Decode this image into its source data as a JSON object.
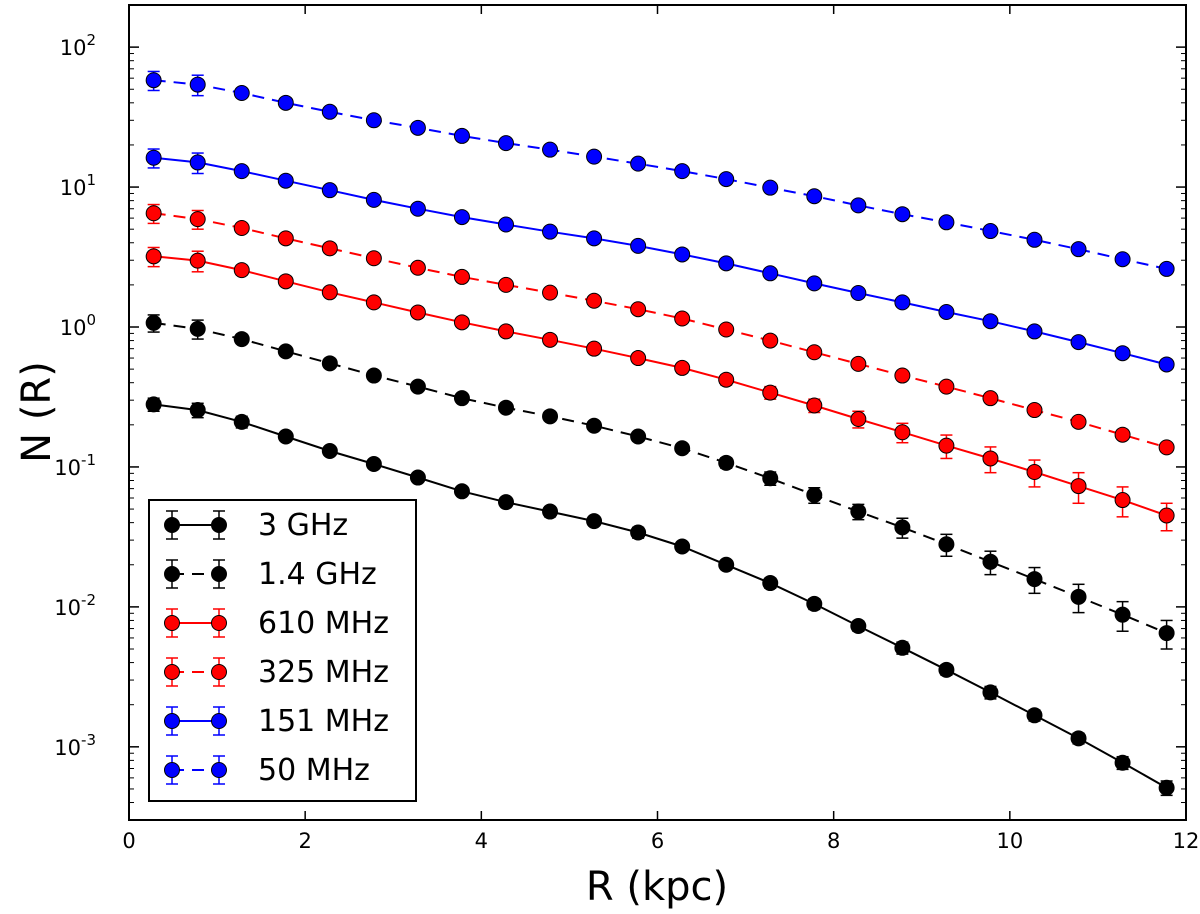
{
  "chart_data": {
    "type": "line",
    "title": "",
    "xlabel": "R (kpc)",
    "ylabel": "N (R)",
    "xscale": "linear",
    "yscale": "log",
    "xlim": [
      0,
      12
    ],
    "ylim": [
      0.0003,
      200
    ],
    "xticks": [
      0,
      2,
      4,
      6,
      8,
      10,
      12
    ],
    "xtick_labels": [
      "0",
      "2",
      "4",
      "6",
      "8",
      "10",
      "12"
    ],
    "yticks": [
      {
        "value": 0.001,
        "base": "10",
        "exp": "-3"
      },
      {
        "value": 0.01,
        "base": "10",
        "exp": "-2"
      },
      {
        "value": 0.1,
        "base": "10",
        "exp": "-1"
      },
      {
        "value": 1,
        "base": "10",
        "exp": "0"
      },
      {
        "value": 10,
        "base": "10",
        "exp": "1"
      },
      {
        "value": 100,
        "base": "10",
        "exp": "2"
      }
    ],
    "grid": false,
    "legend_position": "lower-left",
    "x": [
      0.28,
      0.78,
      1.28,
      1.78,
      2.28,
      2.78,
      3.28,
      3.78,
      4.28,
      4.78,
      5.28,
      5.78,
      6.28,
      6.78,
      7.28,
      7.78,
      8.28,
      8.78,
      9.28,
      9.78,
      10.28,
      10.78,
      11.28,
      11.78
    ],
    "series": [
      {
        "name": "3 GHz",
        "color": "#000000",
        "linestyle": "solid",
        "values": [
          0.28,
          0.255,
          0.21,
          0.165,
          0.13,
          0.105,
          0.084,
          0.067,
          0.056,
          0.048,
          0.041,
          0.034,
          0.027,
          0.02,
          0.0148,
          0.0105,
          0.0073,
          0.0051,
          0.00355,
          0.00245,
          0.00168,
          0.00115,
          0.00077,
          0.00051
        ],
        "err": [
          0.03,
          0.03,
          0.02,
          0.01,
          0.008,
          0.006,
          0.005,
          0.004,
          0.004,
          0.004,
          0.003,
          0.003,
          0.002,
          0.0015,
          0.0012,
          0.0009,
          0.0006,
          0.0005,
          0.0003,
          0.00025,
          0.00015,
          0.0001,
          8e-05,
          6e-05
        ]
      },
      {
        "name": "1.4 GHz",
        "color": "#000000",
        "linestyle": "dashed",
        "values": [
          1.07,
          0.97,
          0.82,
          0.67,
          0.55,
          0.45,
          0.375,
          0.31,
          0.265,
          0.23,
          0.197,
          0.165,
          0.136,
          0.107,
          0.083,
          0.063,
          0.048,
          0.037,
          0.028,
          0.021,
          0.0158,
          0.0118,
          0.0088,
          0.0065
        ],
        "err": [
          0.15,
          0.15,
          0.06,
          0.04,
          0.03,
          0.025,
          0.02,
          0.02,
          0.015,
          0.015,
          0.012,
          0.012,
          0.01,
          0.009,
          0.009,
          0.008,
          0.006,
          0.006,
          0.005,
          0.004,
          0.0033,
          0.0027,
          0.0021,
          0.0015
        ]
      },
      {
        "name": "610 MHz",
        "color": "#ff0000",
        "linestyle": "solid",
        "values": [
          3.2,
          2.98,
          2.55,
          2.12,
          1.77,
          1.5,
          1.27,
          1.08,
          0.93,
          0.81,
          0.7,
          0.6,
          0.51,
          0.42,
          0.34,
          0.275,
          0.22,
          0.177,
          0.142,
          0.115,
          0.092,
          0.073,
          0.058,
          0.045
        ],
        "err": [
          0.5,
          0.5,
          0.2,
          0.15,
          0.12,
          0.1,
          0.08,
          0.07,
          0.06,
          0.06,
          0.05,
          0.04,
          0.04,
          0.035,
          0.035,
          0.03,
          0.03,
          0.028,
          0.027,
          0.024,
          0.02,
          0.018,
          0.014,
          0.01
        ]
      },
      {
        "name": "325 MHz",
        "color": "#ff0000",
        "linestyle": "dashed",
        "values": [
          6.5,
          5.9,
          5.1,
          4.3,
          3.65,
          3.1,
          2.65,
          2.28,
          2.0,
          1.76,
          1.54,
          1.34,
          1.15,
          0.96,
          0.8,
          0.66,
          0.545,
          0.45,
          0.375,
          0.31,
          0.255,
          0.21,
          0.17,
          0.138
        ],
        "err": [
          1.0,
          0.9,
          0.3,
          0.2,
          0.15,
          0.12,
          0.1,
          0.09,
          0.08,
          0.07,
          0.06,
          0.05,
          0.05,
          0.04,
          0.04,
          0.035,
          0.03,
          0.025,
          0.02,
          0.02,
          0.018,
          0.016,
          0.012,
          0.01
        ]
      },
      {
        "name": "151 MHz",
        "color": "#0000ff",
        "linestyle": "solid",
        "values": [
          16.2,
          15.0,
          13.0,
          11.1,
          9.5,
          8.1,
          7.0,
          6.1,
          5.4,
          4.8,
          4.3,
          3.8,
          3.3,
          2.85,
          2.42,
          2.05,
          1.75,
          1.5,
          1.28,
          1.1,
          0.93,
          0.78,
          0.65,
          0.54
        ],
        "err": [
          2.5,
          2.5,
          0.8,
          0.5,
          0.4,
          0.3,
          0.25,
          0.2,
          0.2,
          0.15,
          0.15,
          0.12,
          0.1,
          0.1,
          0.09,
          0.08,
          0.07,
          0.06,
          0.05,
          0.05,
          0.04,
          0.04,
          0.035,
          0.03
        ]
      },
      {
        "name": "50 MHz",
        "color": "#0000ff",
        "linestyle": "dashed",
        "values": [
          58,
          54,
          47,
          40,
          34.5,
          30,
          26.5,
          23.2,
          20.6,
          18.5,
          16.5,
          14.7,
          13.0,
          11.4,
          9.9,
          8.6,
          7.4,
          6.4,
          5.6,
          4.85,
          4.2,
          3.6,
          3.05,
          2.6
        ],
        "err": [
          9,
          9,
          3,
          2,
          1.5,
          1.2,
          1.0,
          0.9,
          0.8,
          0.7,
          0.6,
          0.5,
          0.5,
          0.4,
          0.4,
          0.35,
          0.3,
          0.3,
          0.25,
          0.25,
          0.2,
          0.18,
          0.15,
          0.12
        ]
      }
    ]
  }
}
